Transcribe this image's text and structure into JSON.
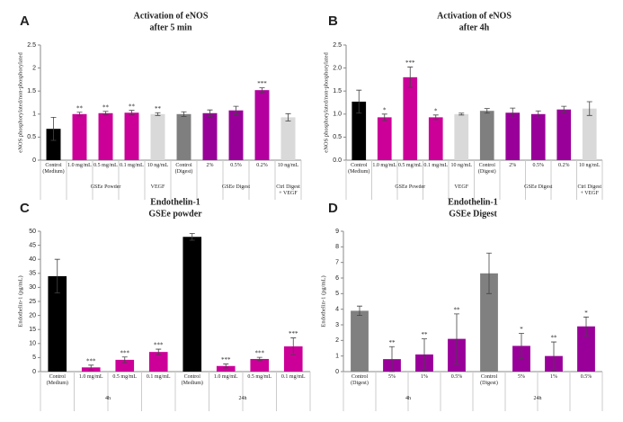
{
  "chart_data": [
    {
      "type": "bar",
      "panel": "A",
      "title": "Activation of eNOS",
      "subtitle": "after 5 min",
      "y_label": "eNOS phosphorylated/non-phosphorylated",
      "categories": [
        "Control (Medium)",
        "1.0 mg/mL",
        "0.5 mg/mL",
        "0.1 mg/mL",
        "10 ng/mL",
        "Control (Digest)",
        "2%",
        "0.5%",
        "0.2%",
        "10 ng/mL"
      ],
      "values": [
        0.68,
        1.0,
        1.02,
        1.03,
        1.0,
        1.0,
        1.02,
        1.08,
        1.52,
        0.93
      ],
      "errors": [
        0.25,
        0.04,
        0.04,
        0.05,
        0.03,
        0.05,
        0.07,
        0.09,
        0.05,
        0.08
      ],
      "colors": [
        "#000000",
        "#cc0099",
        "#cc0099",
        "#cc0099",
        "#d9d9d9",
        "#7f7f7f",
        "#990099",
        "#990099",
        "#b3009f",
        "#d9d9d9"
      ],
      "annotations": [
        null,
        "**",
        "**",
        "**",
        "**",
        null,
        null,
        null,
        "***",
        null
      ],
      "groups": [
        {
          "label": "GSEe Powder",
          "from": 1,
          "to": 3
        },
        {
          "label": "VEGF",
          "from": 4,
          "to": 4
        },
        {
          "label": "GSEe Digest",
          "from": 6,
          "to": 8
        },
        {
          "label": "Ctrl Digest + VEGF",
          "from": 9,
          "to": 9
        }
      ],
      "ylim": [
        0,
        2.5
      ],
      "yticks": [
        0,
        0.5,
        1,
        1.5,
        2,
        2.5
      ]
    },
    {
      "type": "bar",
      "panel": "B",
      "title": "Activation of eNOS",
      "subtitle": "after 4h",
      "y_label": "eNOS phosphorylated/non-phosphorylated",
      "categories": [
        "Control (Medium)",
        "1.0 mg/mL",
        "0.5 mg/mL",
        "0.1 mg/mL",
        "10 ng/mL",
        "Control (Digest)",
        "2%",
        "0.5%",
        "0.2%",
        "10 ng/mL"
      ],
      "values": [
        1.27,
        0.93,
        1.8,
        0.93,
        1.0,
        1.07,
        1.03,
        1.0,
        1.1,
        1.12
      ],
      "errors": [
        0.25,
        0.07,
        0.22,
        0.05,
        0.02,
        0.05,
        0.1,
        0.07,
        0.07,
        0.15
      ],
      "colors": [
        "#000000",
        "#cc0099",
        "#cc0099",
        "#cc0099",
        "#d9d9d9",
        "#7f7f7f",
        "#990099",
        "#990099",
        "#990099",
        "#d9d9d9"
      ],
      "annotations": [
        null,
        "*",
        "***",
        "*",
        null,
        null,
        null,
        null,
        null,
        null
      ],
      "groups": [
        {
          "label": "GSEe Powder",
          "from": 1,
          "to": 3
        },
        {
          "label": "VEGF",
          "from": 4,
          "to": 4
        },
        {
          "label": "GSEe Digest",
          "from": 6,
          "to": 8
        },
        {
          "label": "Ctrl Digest + VEGF",
          "from": 9,
          "to": 9
        }
      ],
      "ylim": [
        0,
        2.5
      ],
      "yticks": [
        {
          "value": 0,
          "label": "0.0"
        },
        {
          "value": 0.5,
          "label": "0.5"
        },
        {
          "value": 1,
          "label": "1.0"
        },
        {
          "value": 1.5,
          "label": "1.5"
        },
        {
          "value": 2,
          "label": "2.0"
        },
        {
          "value": 2.5,
          "label": "2.5"
        }
      ]
    },
    {
      "type": "bar",
      "panel": "C",
      "title": "Endothelin-1",
      "subtitle": "GSEe powder",
      "y_label": "Endothelin-1 (pg/mL)",
      "categories": [
        "Control (Medium)",
        "1.0 mg/mL",
        "0.5 mg/mL",
        "0.1 mg/mL",
        "Control (Medium)",
        "1.0 mg/mL",
        "0.5 mg/mL",
        "0.1 mg/mL"
      ],
      "values": [
        34,
        1.5,
        4.2,
        7,
        48,
        2,
        4.5,
        9
      ],
      "errors": [
        6,
        0.8,
        1,
        1,
        1.2,
        0.7,
        0.6,
        3
      ],
      "colors": [
        "#000000",
        "#cc0099",
        "#cc0099",
        "#cc0099",
        "#000000",
        "#cc0099",
        "#cc0099",
        "#cc0099"
      ],
      "annotations": [
        null,
        "***",
        "***",
        "***",
        null,
        "***",
        "***",
        "***"
      ],
      "groups": [
        {
          "label": "4h",
          "from": 0,
          "to": 3
        },
        {
          "label": "24h",
          "from": 4,
          "to": 7
        }
      ],
      "ylim": [
        0,
        50
      ],
      "yticks": [
        0,
        5,
        10,
        15,
        20,
        25,
        30,
        35,
        40,
        45,
        50
      ]
    },
    {
      "type": "bar",
      "panel": "D",
      "title": "Endothelin-1",
      "subtitle": "GSEe Digest",
      "y_label": "Endothelin-1 (pg/mL)",
      "categories": [
        "Control (Digest)",
        "5%",
        "1%",
        "0.5%",
        "Control (Digest)",
        "5%",
        "1%",
        "0.5%"
      ],
      "values": [
        3.9,
        0.8,
        1.1,
        2.1,
        6.3,
        1.65,
        1.0,
        2.9
      ],
      "errors": [
        0.3,
        0.8,
        1,
        1.6,
        1.3,
        0.8,
        0.9,
        0.6
      ],
      "colors": [
        "#808080",
        "#990099",
        "#990099",
        "#990099",
        "#808080",
        "#990099",
        "#990099",
        "#990099"
      ],
      "annotations": [
        null,
        "**",
        "**",
        "**",
        null,
        "*",
        "**",
        "*"
      ],
      "groups": [
        {
          "label": "4h",
          "from": 0,
          "to": 3
        },
        {
          "label": "24h",
          "from": 4,
          "to": 7
        }
      ],
      "ylim": [
        0,
        9
      ],
      "yticks": [
        0,
        1,
        2,
        3,
        4,
        5,
        6,
        7,
        8,
        9
      ]
    }
  ]
}
